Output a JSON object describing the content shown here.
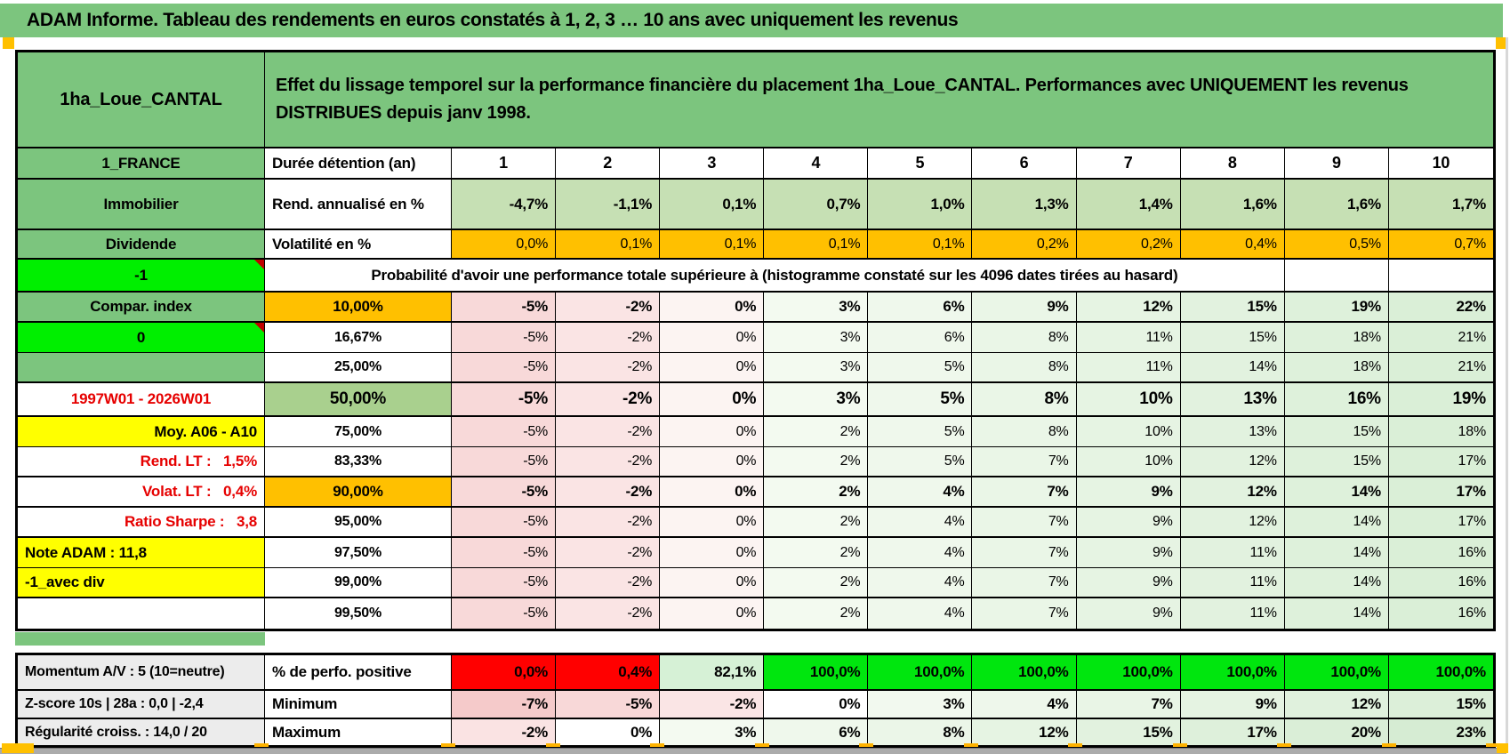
{
  "title": "ADAM Informe. Tableau des rendements en euros constatés à 1, 2, 3 … 10 ans avec uniquement les revenus",
  "header": {
    "asset": "1ha_Loue_CANTAL",
    "description": "Effet du lissage temporel sur la performance financière du placement 1ha_Loue_CANTAL. Performances avec UNIQUEMENT les revenus DISTRIBUES depuis janv 1998."
  },
  "colors": {
    "header_green": "#7cc57e",
    "highlight_orange": "#ffc000",
    "bright_green": "#00ef00",
    "positive_green": "#00e60e",
    "negative_red": "#ff0000",
    "yellow": "#ffff00",
    "light_green": "#c6e0b4",
    "mid_green": "#a9d08e",
    "red_text": "#e60000"
  },
  "grid": {
    "columns": [
      "1",
      "2",
      "3",
      "4",
      "5",
      "6",
      "7",
      "8",
      "9",
      "10"
    ],
    "rows": [
      {
        "kind": "columns",
        "sep": true,
        "a": "1_FRANCE",
        "b": "Durée détention (an)",
        "cells": [
          "1",
          "2",
          "3",
          "4",
          "5",
          "6",
          "7",
          "8",
          "9",
          "10"
        ]
      },
      {
        "kind": "returns",
        "sep": true,
        "a": "Immobilier",
        "b": "Rend. annualisé en %",
        "cells": [
          "-4,7%",
          "-1,1%",
          "0,1%",
          "0,7%",
          "1,0%",
          "1,3%",
          "1,4%",
          "1,6%",
          "1,6%",
          "1,7%"
        ]
      },
      {
        "kind": "volatility",
        "sep": true,
        "a": "Dividende",
        "b": "Volatilité en %",
        "cells": [
          "0,0%",
          "0,1%",
          "0,1%",
          "0,1%",
          "0,1%",
          "0,2%",
          "0,2%",
          "0,4%",
          "0,5%",
          "0,7%"
        ]
      },
      {
        "kind": "banner",
        "sep": true,
        "a": "-1",
        "a_style": "bright",
        "has_comment": true,
        "banner": "Probabilité d'avoir une performance totale supérieure à (histogramme constaté sur les 4096 dates tirées au hasard)"
      },
      {
        "kind": "percentile",
        "sep": true,
        "emph": true,
        "a": "Compar. index",
        "b": "10,00%",
        "b_style": "orange",
        "cells": [
          "-5%",
          "-2%",
          "0%",
          "3%",
          "6%",
          "9%",
          "12%",
          "15%",
          "19%",
          "22%"
        ]
      },
      {
        "kind": "percentile",
        "a": "0",
        "a_style": "bright",
        "has_comment": true,
        "b": "16,67%",
        "cells": [
          "-5%",
          "-2%",
          "0%",
          "3%",
          "6%",
          "8%",
          "11%",
          "15%",
          "18%",
          "21%"
        ]
      },
      {
        "kind": "percentile",
        "sep": true,
        "a": "",
        "b": "25,00%",
        "cells": [
          "-5%",
          "-2%",
          "0%",
          "3%",
          "5%",
          "8%",
          "11%",
          "14%",
          "18%",
          "21%"
        ]
      },
      {
        "kind": "percentile",
        "sep": true,
        "emph": true,
        "big": true,
        "a": "1997W01 - 2026W01",
        "a_style": "red-center",
        "b": "50,00%",
        "b_style": "green",
        "cells": [
          "-5%",
          "-2%",
          "0%",
          "3%",
          "5%",
          "8%",
          "10%",
          "13%",
          "16%",
          "19%"
        ]
      },
      {
        "kind": "percentile",
        "a": "Moy. A06 - A10",
        "a_style": "yellow-right",
        "b": "75,00%",
        "cells": [
          "-5%",
          "-2%",
          "0%",
          "2%",
          "5%",
          "8%",
          "10%",
          "13%",
          "15%",
          "18%"
        ]
      },
      {
        "kind": "percentile",
        "sep": true,
        "a": "Rend. LT :   1,5%",
        "a_style": "red-right",
        "b": "83,33%",
        "cells": [
          "-5%",
          "-2%",
          "0%",
          "2%",
          "5%",
          "7%",
          "10%",
          "12%",
          "15%",
          "17%"
        ]
      },
      {
        "kind": "percentile",
        "sep": true,
        "emph": true,
        "a": "Volat. LT :   0,4%",
        "a_style": "red-right",
        "b": "90,00%",
        "b_style": "orange",
        "cells": [
          "-5%",
          "-2%",
          "0%",
          "2%",
          "4%",
          "7%",
          "9%",
          "12%",
          "14%",
          "17%"
        ]
      },
      {
        "kind": "percentile",
        "sep": true,
        "a": "Ratio Sharpe :   3,8",
        "a_style": "red-right",
        "b": "95,00%",
        "cells": [
          "-5%",
          "-2%",
          "0%",
          "2%",
          "4%",
          "7%",
          "9%",
          "12%",
          "14%",
          "17%"
        ]
      },
      {
        "kind": "percentile",
        "a": "Note ADAM : 11,8",
        "a_style": "yellow-left",
        "b": "97,50%",
        "cells": [
          "-5%",
          "-2%",
          "0%",
          "2%",
          "4%",
          "7%",
          "9%",
          "11%",
          "14%",
          "16%"
        ]
      },
      {
        "kind": "percentile",
        "sep": true,
        "a": "-1_avec div",
        "a_style": "yellow-left",
        "b": "99,00%",
        "cells": [
          "-5%",
          "-2%",
          "0%",
          "2%",
          "4%",
          "7%",
          "9%",
          "11%",
          "14%",
          "16%"
        ]
      },
      {
        "kind": "percentile",
        "a": "",
        "a_style": "plain",
        "b": "99,50%",
        "cells": [
          "-5%",
          "-2%",
          "0%",
          "2%",
          "4%",
          "7%",
          "9%",
          "11%",
          "14%",
          "16%"
        ]
      },
      {
        "kind": "positive",
        "sep": true,
        "a": "Momentum A/V : 5 (10=neutre)",
        "b": "% de perfo. positive",
        "cells": [
          "0,0%",
          "0,4%",
          "82,1%",
          "100,0%",
          "100,0%",
          "100,0%",
          "100,0%",
          "100,0%",
          "100,0%",
          "100,0%"
        ]
      },
      {
        "kind": "minimum",
        "sep": true,
        "a": "Z-score 10s | 28a : 0,0 | -2,4",
        "b": "Minimum",
        "cells": [
          "-7%",
          "-5%",
          "-2%",
          "0%",
          "3%",
          "4%",
          "7%",
          "9%",
          "12%",
          "15%"
        ]
      },
      {
        "kind": "maximum",
        "a": "Régularité croiss. : 14,0 / 20",
        "b": "Maximum",
        "cells": [
          "-2%",
          "0%",
          "3%",
          "6%",
          "8%",
          "12%",
          "15%",
          "17%",
          "20%",
          "23%"
        ]
      }
    ]
  }
}
